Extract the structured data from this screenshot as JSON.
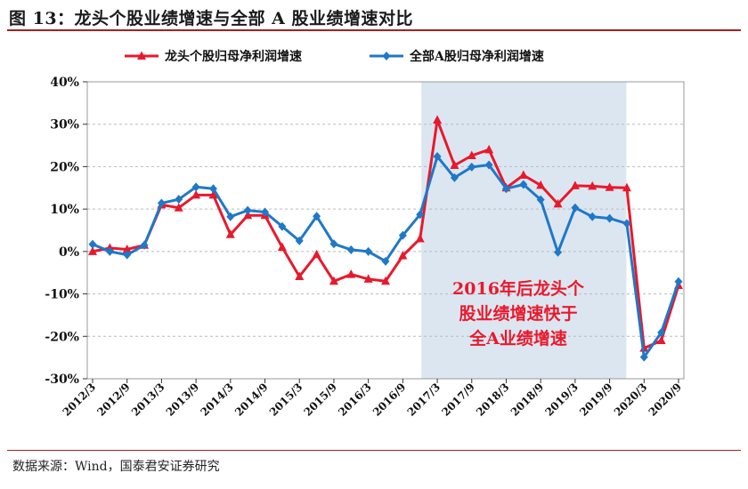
{
  "figure": {
    "title": "图 13：龙头个股业绩增速与全部 A 股业绩增速对比",
    "source": "数据来源：Wind，国泰君安证券研究"
  },
  "chart_data": {
    "type": "line",
    "x": [
      "2012/3",
      "2012/6",
      "2012/9",
      "2012/12",
      "2013/3",
      "2013/6",
      "2013/9",
      "2013/12",
      "2014/3",
      "2014/6",
      "2014/9",
      "2014/12",
      "2015/3",
      "2015/6",
      "2015/9",
      "2015/12",
      "2016/3",
      "2016/6",
      "2016/9",
      "2016/12",
      "2017/3",
      "2017/6",
      "2017/9",
      "2017/12",
      "2018/3",
      "2018/6",
      "2018/9",
      "2018/12",
      "2019/3",
      "2019/6",
      "2019/9",
      "2019/12",
      "2020/3",
      "2020/6",
      "2020/9"
    ],
    "x_tick_labels": [
      "2012/3",
      "2012/9",
      "2013/3",
      "2013/9",
      "2014/3",
      "2014/9",
      "2015/3",
      "2015/9",
      "2016/3",
      "2016/9",
      "2017/3",
      "2017/9",
      "2018/3",
      "2018/9",
      "2019/3",
      "2019/9",
      "2020/3",
      "2020/9"
    ],
    "series": [
      {
        "name": "龙头个股归母净利润增速",
        "color": "#e8192c",
        "marker": "triangle",
        "values": [
          0,
          0.8,
          0.5,
          1.5,
          11,
          10.3,
          13.3,
          13.3,
          4,
          8.5,
          8.5,
          1,
          -5.9,
          -0.7,
          -7,
          -5.4,
          -6.5,
          -7,
          -1,
          3,
          31,
          20.3,
          22.6,
          24,
          15,
          18,
          15.6,
          11.2,
          15.5,
          15.4,
          15.1,
          15,
          -22.8,
          -21,
          -8
        ]
      },
      {
        "name": "全部A股归母净利润增速",
        "color": "#1f78c8",
        "marker": "diamond",
        "values": [
          1.7,
          0,
          -0.8,
          1.5,
          11.4,
          12.3,
          15.2,
          14.8,
          8.2,
          9.7,
          9.3,
          5.9,
          2.5,
          8.3,
          1.8,
          0.4,
          0,
          -2.3,
          3.8,
          8.7,
          22.4,
          17.4,
          19.9,
          20.4,
          14.8,
          15.8,
          12.2,
          -0.2,
          10.3,
          8.2,
          7.8,
          6.6,
          -24.9,
          -19.1,
          -7.1
        ]
      }
    ],
    "y_tick_labels": [
      "40%",
      "30%",
      "20%",
      "10%",
      "0%",
      "-10%",
      "-20%",
      "-30%"
    ],
    "ylim": [
      -30,
      40
    ],
    "y_unit": "%",
    "grid": true,
    "legend_position": "top",
    "highlight_range": {
      "from": "2016/12",
      "to": "2019/12",
      "color": "#dce6f1"
    },
    "annotation": [
      "2016年后龙头个",
      "股业绩增速快于",
      "全A业绩增速"
    ]
  }
}
